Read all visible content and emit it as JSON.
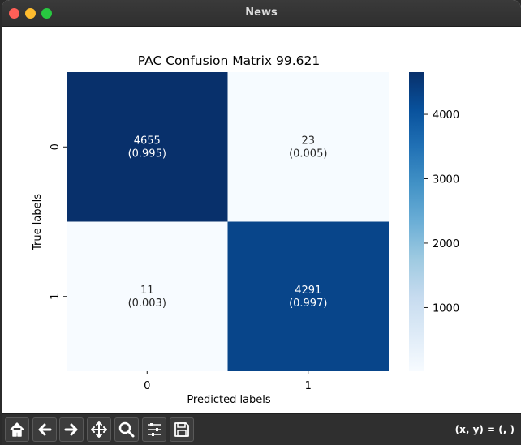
{
  "window": {
    "title": "News"
  },
  "toolbar": {
    "buttons": [
      {
        "name": "home-button",
        "icon": "home-icon"
      },
      {
        "name": "back-button",
        "icon": "arrow-left-icon"
      },
      {
        "name": "forward-button",
        "icon": "arrow-right-icon"
      },
      {
        "name": "pan-button",
        "icon": "move-icon"
      },
      {
        "name": "zoom-button",
        "icon": "zoom-icon"
      },
      {
        "name": "configure-subplots-button",
        "icon": "sliders-icon"
      },
      {
        "name": "save-button",
        "icon": "save-icon"
      }
    ],
    "coords": "(x, y) = (, )"
  },
  "chart_data": {
    "type": "heatmap",
    "title": "PAC Confusion Matrix 99.621",
    "xlabel": "Predicted labels",
    "ylabel": "True labels",
    "x_categories": [
      "0",
      "1"
    ],
    "y_categories": [
      "0",
      "1"
    ],
    "values": [
      [
        4655,
        23
      ],
      [
        11,
        4291
      ]
    ],
    "cell_labels": [
      [
        "(0.995)",
        "(0.005)"
      ],
      [
        "(0.003)",
        "(0.997)"
      ]
    ],
    "colormap": "Blues",
    "colorbar": {
      "min": 11,
      "max": 4655,
      "ticks": [
        1000,
        2000,
        3000,
        4000
      ]
    },
    "colors": {
      "low": "#f7fbff",
      "high": "#08306b",
      "text_light": "#ffffff",
      "text_dark": "#262626"
    }
  }
}
